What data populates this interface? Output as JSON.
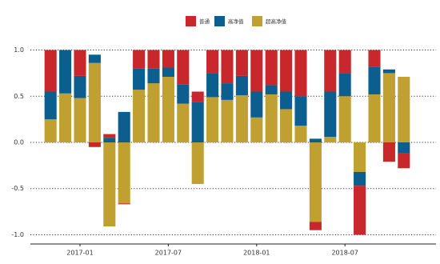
{
  "chart_data": {
    "type": "bar",
    "categories": [
      null,
      null,
      "2017-01",
      null,
      null,
      null,
      null,
      null,
      "2017-07",
      null,
      null,
      null,
      null,
      null,
      "2018-01",
      null,
      null,
      null,
      null,
      null,
      "2018-07",
      null,
      null,
      null,
      null
    ],
    "series": [
      {
        "name": "普通",
        "color": "#c8282b",
        "values": [
          0.45,
          0,
          0.28,
          -0.05,
          0.04,
          -0.01,
          0.2,
          0.2,
          0.19,
          0.37,
          0.11,
          0.25,
          0.36,
          0.28,
          0.45,
          0.38,
          0.45,
          0.5,
          -0.09,
          0.45,
          0.25,
          -0.53,
          0.18,
          -0.21,
          -0.16
        ]
      },
      {
        "name": "高净值",
        "color": "#0b5e8d",
        "values": [
          0.3,
          0.47,
          0.24,
          0.09,
          0.05,
          0.33,
          0.23,
          0.16,
          0.1,
          0.21,
          0.44,
          0.26,
          0.18,
          0.21,
          0.28,
          0.1,
          0.19,
          0.32,
          0.04,
          0.49,
          0.25,
          -0.15,
          0.3,
          0.04,
          -0.12
        ]
      },
      {
        "name": "超高净值",
        "color": "#c0a030",
        "values": [
          0.25,
          0.53,
          0.48,
          0.86,
          -0.91,
          -0.66,
          0.57,
          0.64,
          0.71,
          0.42,
          -0.45,
          0.49,
          0.46,
          0.51,
          0.27,
          0.52,
          0.36,
          0.18,
          -0.86,
          0.06,
          0.5,
          -0.32,
          0.52,
          0.75,
          0.71
        ]
      }
    ],
    "ylim": [
      -1.1,
      1.1
    ],
    "yticks": [
      {
        "value": 1,
        "label": "1.0"
      },
      0.5,
      {
        "value": 0,
        "label": "0.0"
      },
      -0.5,
      {
        "value": -1,
        "label": "-1.0"
      }
    ],
    "grid": true
  }
}
